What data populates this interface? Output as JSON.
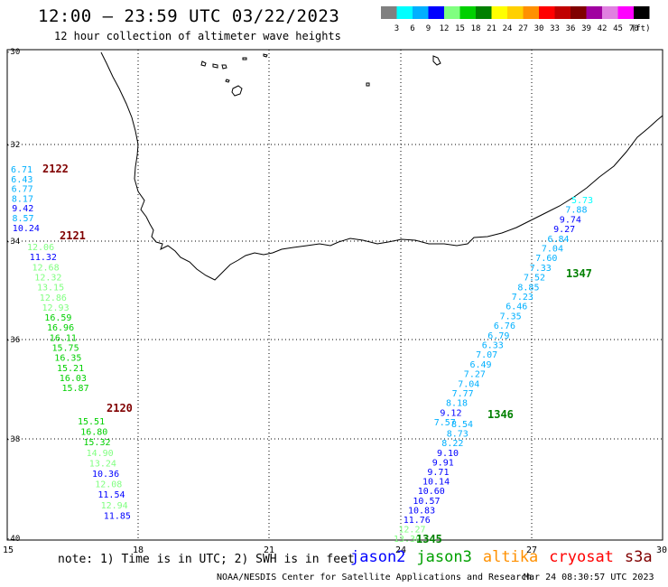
{
  "header": {
    "title": "12:00 – 23:59 UTC 03/22/2023",
    "subtitle": "12 hour collection of altimeter wave heights"
  },
  "color_scale": {
    "labels": [
      "3",
      "6",
      "9",
      "12",
      "15",
      "18",
      "21",
      "24",
      "27",
      "30",
      "33",
      "36",
      "39",
      "42",
      "45",
      "70"
    ],
    "unit": "(ft)",
    "colors": [
      "#808080",
      "#00ffff",
      "#00b0ff",
      "#0000ff",
      "#80ff80",
      "#00d000",
      "#008000",
      "#ffff00",
      "#ffd000",
      "#ff9000",
      "#ff0000",
      "#c00000",
      "#800000",
      "#a000a0",
      "#e080e0",
      "#ff00ff",
      "#000000"
    ]
  },
  "axes": {
    "lat_ticks": [
      "-30",
      "-32",
      "-34",
      "-36",
      "-38",
      "-40"
    ],
    "lon_ticks": [
      "15",
      "18",
      "21",
      "24",
      "27",
      "30"
    ]
  },
  "tracks": [
    {
      "label": "2122",
      "label_color": "#800000",
      "points": [
        {
          "v": "6.71",
          "c": "#00b0ff"
        },
        {
          "v": "6.43",
          "c": "#00b0ff"
        },
        {
          "v": "6.77",
          "c": "#00b0ff"
        },
        {
          "v": "8.17",
          "c": "#00b0ff"
        },
        {
          "v": "9.42",
          "c": "#0000ff"
        },
        {
          "v": "8.57",
          "c": "#00b0ff"
        },
        {
          "v": "10.24",
          "c": "#0000ff"
        }
      ]
    },
    {
      "label": "2121",
      "label_color": "#800000",
      "points": [
        {
          "v": "12.06",
          "c": "#80ff80"
        },
        {
          "v": "11.32",
          "c": "#0000ff"
        },
        {
          "v": "12.68",
          "c": "#80ff80"
        },
        {
          "v": "12.32",
          "c": "#80ff80"
        },
        {
          "v": "13.15",
          "c": "#80ff80"
        },
        {
          "v": "12.86",
          "c": "#80ff80"
        },
        {
          "v": "12.93",
          "c": "#80ff80"
        },
        {
          "v": "16.59",
          "c": "#00d000"
        },
        {
          "v": "16.96",
          "c": "#00d000"
        },
        {
          "v": "16.11",
          "c": "#00d000"
        },
        {
          "v": "15.75",
          "c": "#00d000"
        },
        {
          "v": "16.35",
          "c": "#00d000"
        },
        {
          "v": "15.21",
          "c": "#00d000"
        },
        {
          "v": "16.03",
          "c": "#00d000"
        },
        {
          "v": "15.87",
          "c": "#00d000"
        }
      ]
    },
    {
      "label": "2120",
      "label_color": "#800000",
      "points": [
        {
          "v": "15.51",
          "c": "#00d000"
        },
        {
          "v": "16.80",
          "c": "#00d000"
        },
        {
          "v": "15.32",
          "c": "#00d000"
        },
        {
          "v": "14.90",
          "c": "#80ff80"
        },
        {
          "v": "13.24",
          "c": "#80ff80"
        },
        {
          "v": "10.36",
          "c": "#0000ff"
        },
        {
          "v": "12.08",
          "c": "#80ff80"
        },
        {
          "v": "11.54",
          "c": "#0000ff"
        },
        {
          "v": "12.94",
          "c": "#80ff80"
        },
        {
          "v": "11.85",
          "c": "#0000ff"
        }
      ]
    },
    {
      "label": "1347",
      "label_color": "#008000",
      "points": [
        {
          "v": "5.73",
          "c": "#00ffff"
        },
        {
          "v": "7.88",
          "c": "#00b0ff"
        },
        {
          "v": "9.74",
          "c": "#0000ff"
        },
        {
          "v": "9.27",
          "c": "#0000ff"
        },
        {
          "v": "6.84",
          "c": "#00b0ff"
        },
        {
          "v": "7.04",
          "c": "#00b0ff"
        },
        {
          "v": "7.60",
          "c": "#00b0ff"
        },
        {
          "v": "7.33",
          "c": "#00b0ff"
        },
        {
          "v": "7.52",
          "c": "#00b0ff"
        },
        {
          "v": "8.85",
          "c": "#00b0ff"
        },
        {
          "v": "7.23",
          "c": "#00b0ff"
        },
        {
          "v": "6.46",
          "c": "#00b0ff"
        },
        {
          "v": "7.35",
          "c": "#00b0ff"
        },
        {
          "v": "6.76",
          "c": "#00b0ff"
        },
        {
          "v": "6.79",
          "c": "#00b0ff"
        },
        {
          "v": "6.33",
          "c": "#00b0ff"
        },
        {
          "v": "7.07",
          "c": "#00b0ff"
        },
        {
          "v": "6.49",
          "c": "#00b0ff"
        },
        {
          "v": "7.27",
          "c": "#00b0ff"
        },
        {
          "v": "7.04",
          "c": "#00b0ff"
        },
        {
          "v": "7.77",
          "c": "#00b0ff"
        },
        {
          "v": "8.18",
          "c": "#00b0ff"
        },
        {
          "v": "9.12",
          "c": "#0000ff"
        },
        {
          "v": "7.57",
          "c": "#00b0ff"
        }
      ]
    },
    {
      "label": "1346",
      "label_color": "#008000",
      "points": [
        {
          "v": "8.54",
          "c": "#00b0ff"
        },
        {
          "v": "8.73",
          "c": "#00b0ff"
        },
        {
          "v": "8.22",
          "c": "#00b0ff"
        },
        {
          "v": "9.10",
          "c": "#0000ff"
        },
        {
          "v": "9.91",
          "c": "#0000ff"
        },
        {
          "v": "9.71",
          "c": "#0000ff"
        },
        {
          "v": "10.14",
          "c": "#0000ff"
        },
        {
          "v": "10.60",
          "c": "#0000ff"
        },
        {
          "v": "10.57",
          "c": "#0000ff"
        },
        {
          "v": "10.83",
          "c": "#0000ff"
        },
        {
          "v": "11.76",
          "c": "#0000ff"
        },
        {
          "v": "12.27",
          "c": "#80ff80"
        },
        {
          "v": "13.30",
          "c": "#80ff80"
        }
      ]
    }
  ],
  "track_end_label": {
    "v": "1345",
    "c": "#008000"
  },
  "footer": {
    "note": "note: 1) Time is in UTC; 2) SWH is in feet",
    "satellites": [
      {
        "name": "jason2",
        "color": "#0000ff"
      },
      {
        "name": "jason3",
        "color": "#00a000"
      },
      {
        "name": "altika",
        "color": "#ff9000"
      },
      {
        "name": "cryosat",
        "color": "#ff0000"
      },
      {
        "name": "s3a",
        "color": "#800000"
      }
    ],
    "credit": "NOAA/NESDIS Center for Satellite Applications and Research",
    "timestamp": "Mar 24 08:30:57 UTC 2023"
  }
}
